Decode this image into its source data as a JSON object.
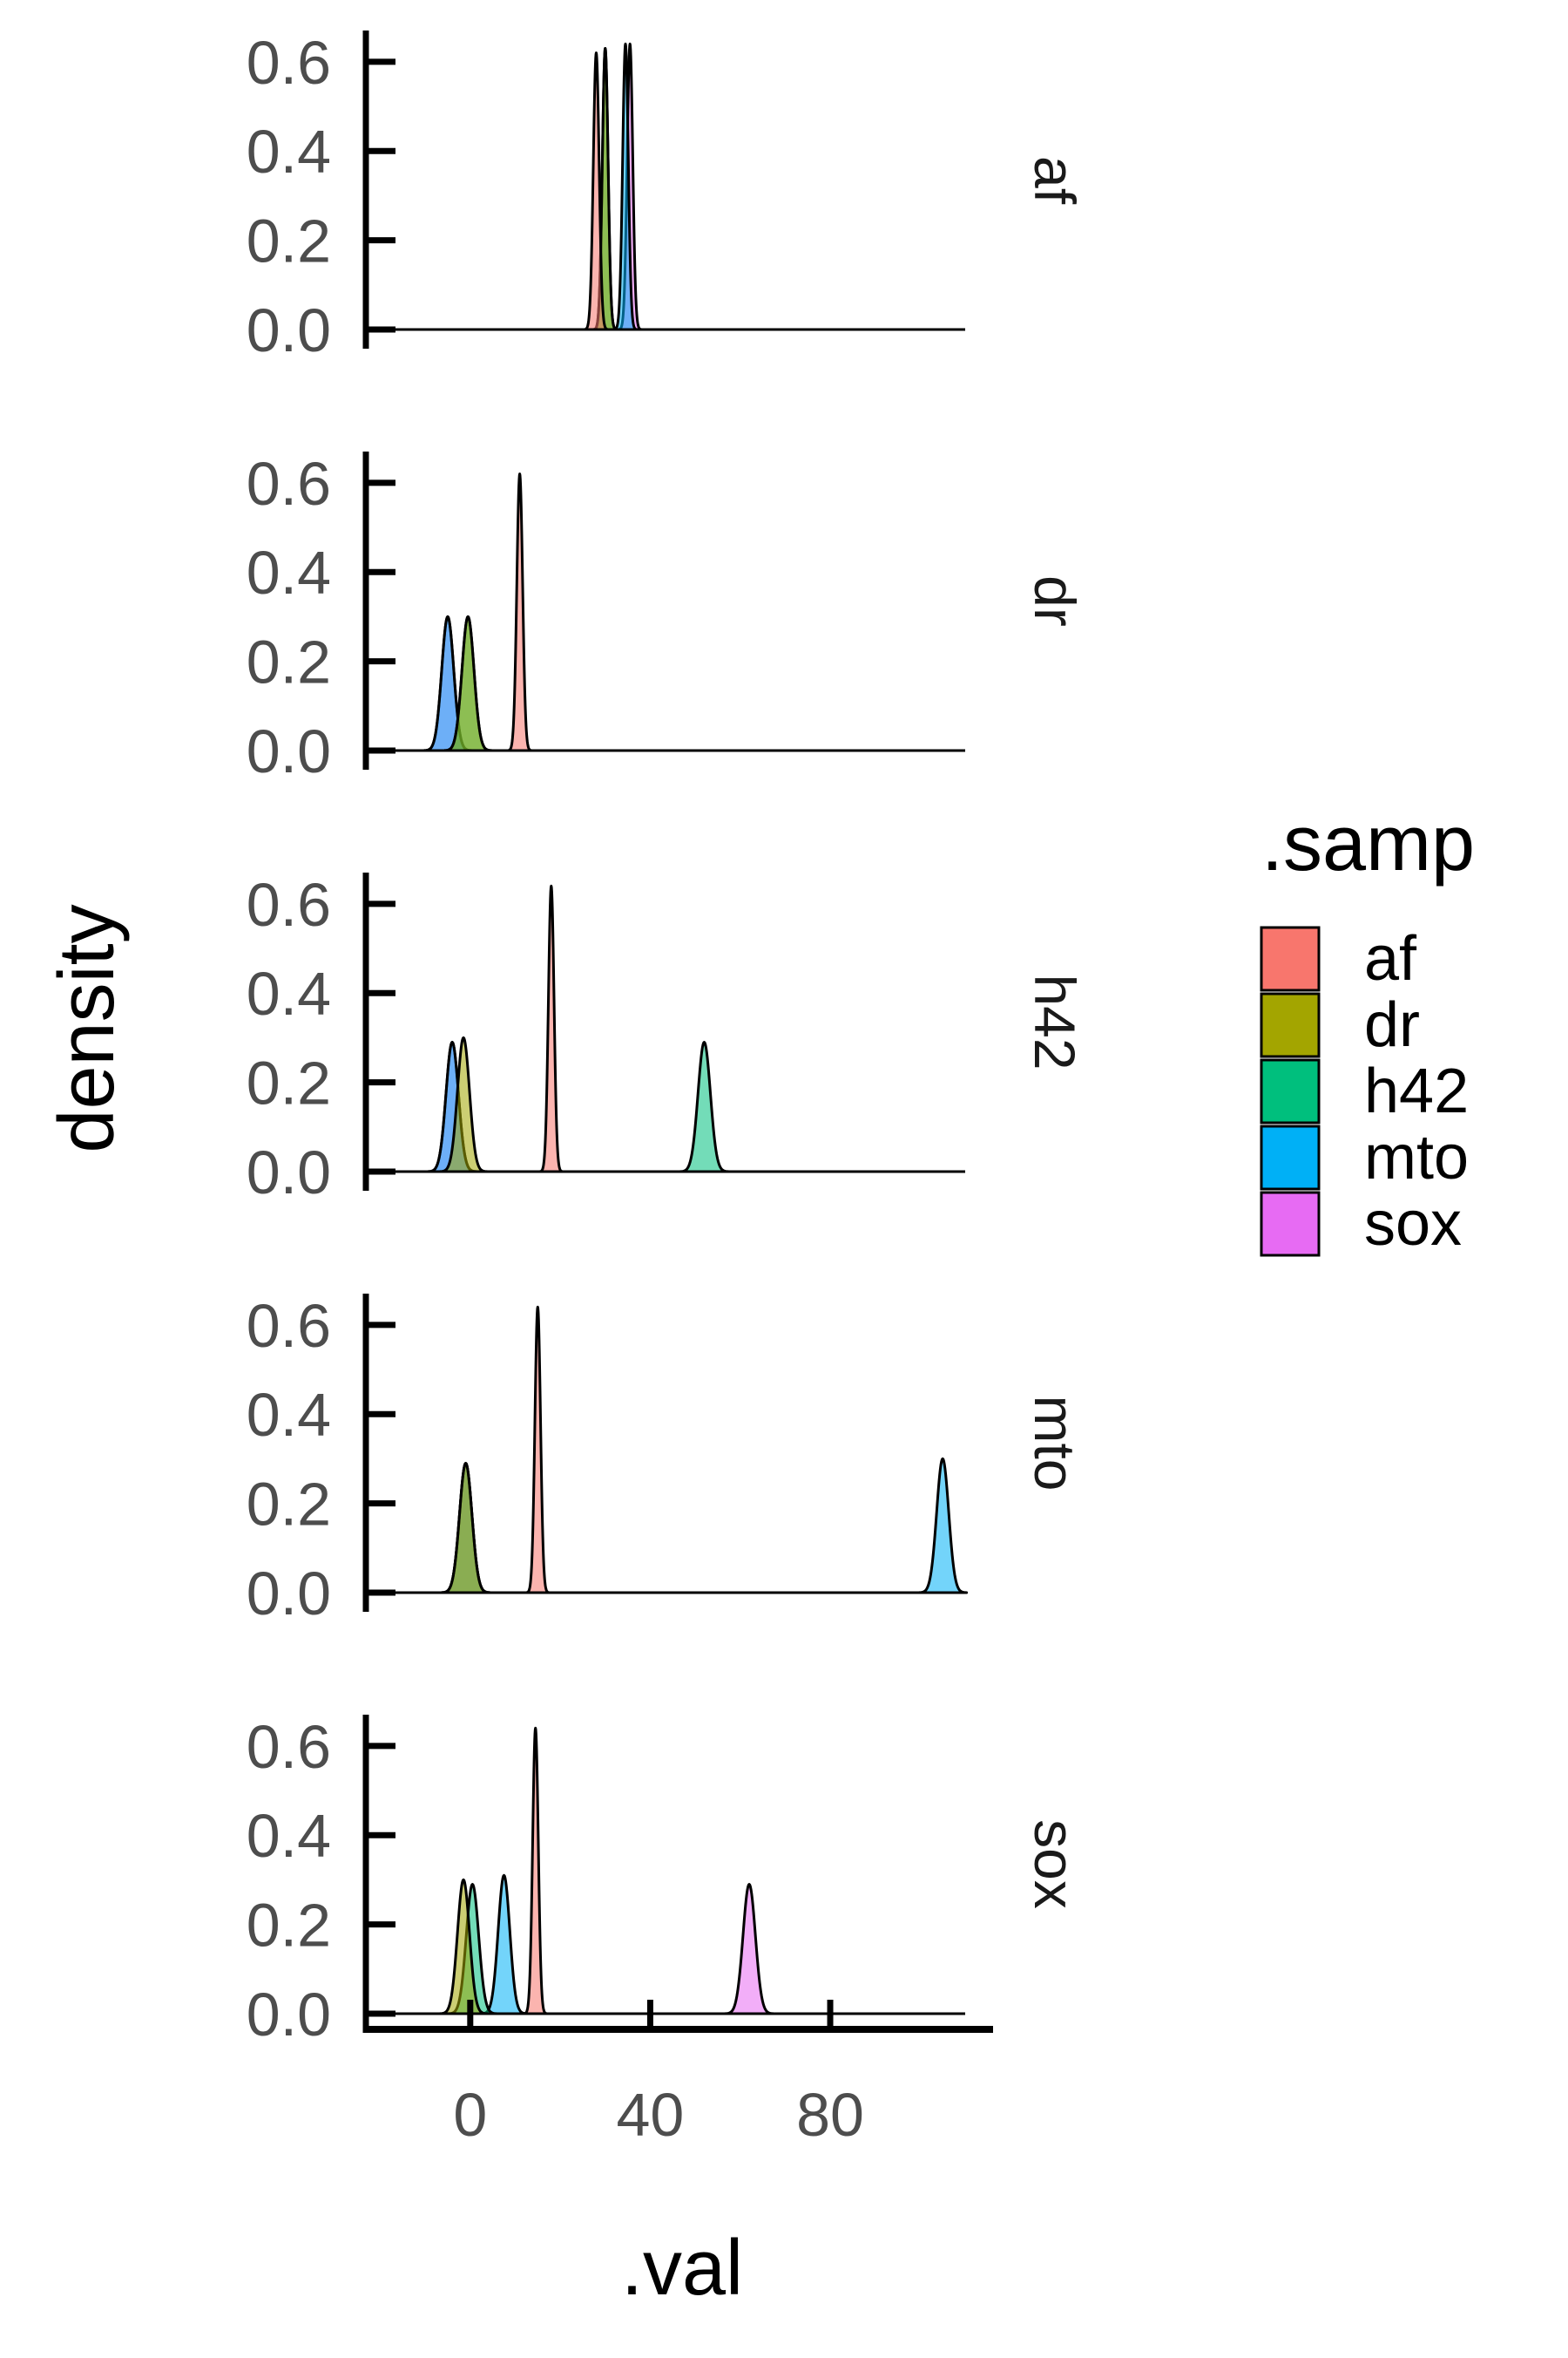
{
  "chart_data": {
    "type": "area",
    "subtype": "density",
    "facet_by_row": [
      "af",
      "dr",
      "h42",
      "mto",
      "sox"
    ],
    "xlabel": ".val",
    "ylabel": "density",
    "x_ticks": [
      "0",
      "40",
      "80"
    ],
    "x_tick_values": [
      0,
      40,
      80
    ],
    "xlim": [
      -17,
      110
    ],
    "y_ticks": [
      "0.0",
      "0.2",
      "0.4",
      "0.6"
    ],
    "y_tick_values": [
      0,
      0.2,
      0.4,
      0.6
    ],
    "ylim": [
      0,
      0.67
    ],
    "grid": false,
    "legend": {
      "title": ".samp",
      "position": "right",
      "entries": [
        {
          "label": "af",
          "color": "#F8766D"
        },
        {
          "label": "dr",
          "color": "#A3A500"
        },
        {
          "label": "h42",
          "color": "#00BF7D"
        },
        {
          "label": "mto",
          "color": "#00B0F6"
        },
        {
          "label": "sox",
          "color": "#E76BF3"
        }
      ]
    },
    "panels": [
      {
        "facet": "af",
        "curves": [
          {
            "series": "af",
            "peak_x": 28,
            "peak_density": 0.62
          },
          {
            "series": "dr",
            "peak_x": 30,
            "peak_density": 0.63
          },
          {
            "series": "h42",
            "peak_x": 30,
            "peak_density": 0.63
          },
          {
            "series": "mto",
            "peak_x": 34.5,
            "peak_density": 0.64
          },
          {
            "series": "sox",
            "peak_x": 35.5,
            "peak_density": 0.64
          }
        ]
      },
      {
        "facet": "dr",
        "curves": [
          {
            "series": "af",
            "peak_x": 11,
            "peak_density": 0.62
          },
          {
            "series": "dr",
            "peak_x": -0.5,
            "peak_density": 0.3
          },
          {
            "series": "h42",
            "peak_x": -0.5,
            "peak_density": 0.3
          },
          {
            "series": "mto",
            "peak_x": -5,
            "peak_density": 0.3
          },
          {
            "series": "sox",
            "peak_x": -5,
            "peak_density": 0.3
          }
        ]
      },
      {
        "facet": "h42",
        "curves": [
          {
            "series": "af",
            "peak_x": 18,
            "peak_density": 0.64
          },
          {
            "series": "dr",
            "peak_x": -1.5,
            "peak_density": 0.3
          },
          {
            "series": "h42",
            "peak_x": 52,
            "peak_density": 0.29
          },
          {
            "series": "mto",
            "peak_x": -4,
            "peak_density": 0.29
          },
          {
            "series": "sox",
            "peak_x": -4,
            "peak_density": 0.29
          }
        ]
      },
      {
        "facet": "mto",
        "curves": [
          {
            "series": "af",
            "peak_x": 15,
            "peak_density": 0.64
          },
          {
            "series": "dr",
            "peak_x": -1,
            "peak_density": 0.29
          },
          {
            "series": "h42",
            "peak_x": -1,
            "peak_density": 0.29
          },
          {
            "series": "mto",
            "peak_x": 105,
            "peak_density": 0.3
          },
          {
            "series": "sox",
            "peak_x": -1,
            "peak_density": 0.29
          }
        ]
      },
      {
        "facet": "sox",
        "curves": [
          {
            "series": "af",
            "peak_x": 14.5,
            "peak_density": 0.64
          },
          {
            "series": "dr",
            "peak_x": -1.5,
            "peak_density": 0.3
          },
          {
            "series": "h42",
            "peak_x": 0.5,
            "peak_density": 0.29
          },
          {
            "series": "mto",
            "peak_x": 7.5,
            "peak_density": 0.31
          },
          {
            "series": "sox",
            "peak_x": 62,
            "peak_density": 0.29
          }
        ]
      }
    ]
  }
}
